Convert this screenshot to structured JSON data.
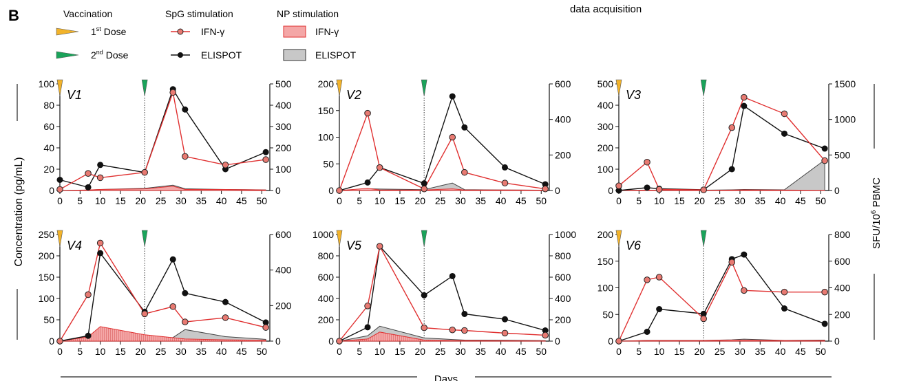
{
  "panel_letter": "B",
  "top_text": "data acquisition",
  "legend": {
    "vaccination": {
      "title": "Vaccination",
      "dose1": "1",
      "dose1_sup": "st",
      "dose1_rest": " Dose",
      "dose2": "2",
      "dose2_sup": "nd",
      "dose2_rest": " Dose"
    },
    "spg": {
      "title": "SpG stimulation",
      "ifn": "IFN-γ",
      "elispot": "ELISPOT"
    },
    "np": {
      "title": "NP stimulation",
      "ifn": "IFN-γ",
      "elispot": "ELISPOT"
    }
  },
  "axis_labels": {
    "left": "Concentration (pg/mL)",
    "right_main": "SFU/10",
    "right_sup": "6",
    "right_tail": " PBMC",
    "x": "Days"
  },
  "colors": {
    "dose1": "#f2b32a",
    "dose2": "#1aa35a",
    "ifn_line": "#e03030",
    "ifn_marker": "#e87a72",
    "elispot_line": "#111111",
    "np_ifn_fill": "#f4a7a7",
    "np_elispot_fill": "#c8c8c8"
  },
  "chart_data": [
    {
      "type": "line",
      "title": "V1",
      "x_ticks": [
        0,
        5,
        10,
        15,
        20,
        25,
        30,
        35,
        40,
        45,
        50
      ],
      "xlim": [
        0,
        52
      ],
      "ylim_left": [
        0,
        100
      ],
      "yticks_left": [
        0,
        20,
        40,
        60,
        80,
        100
      ],
      "ylim_right": [
        0,
        500
      ],
      "yticks_right": [
        0,
        100,
        200,
        300,
        400,
        500
      ],
      "dose_days": [
        0,
        21
      ],
      "series": [
        {
          "role": "spg_ifn",
          "axis": "left",
          "x": [
            0,
            7,
            10,
            21,
            28,
            31,
            41,
            51
          ],
          "y": [
            1,
            16,
            12,
            17,
            92,
            32,
            24,
            29
          ]
        },
        {
          "role": "spg_elispot",
          "axis": "right",
          "x": [
            0,
            7,
            10,
            21,
            28,
            31,
            41,
            51
          ],
          "y": [
            50,
            15,
            120,
            85,
            475,
            380,
            100,
            180
          ]
        },
        {
          "role": "np_ifn",
          "axis": "left",
          "x": [
            0,
            7,
            10,
            21,
            28,
            31,
            41,
            51
          ],
          "y": [
            0,
            0.5,
            1,
            1.5,
            4,
            1,
            1,
            0.5
          ]
        },
        {
          "role": "np_elispot",
          "axis": "right",
          "x": [
            0,
            7,
            10,
            21,
            28,
            31,
            41,
            51
          ],
          "y": [
            0,
            2,
            5,
            10,
            25,
            8,
            5,
            3
          ]
        }
      ]
    },
    {
      "type": "line",
      "title": "V2",
      "x_ticks": [
        0,
        5,
        10,
        15,
        20,
        25,
        30,
        35,
        40,
        45,
        50
      ],
      "xlim": [
        0,
        52
      ],
      "ylim_left": [
        0,
        200
      ],
      "yticks_left": [
        0,
        50,
        100,
        150,
        200
      ],
      "ylim_right": [
        0,
        600
      ],
      "yticks_right": [
        0,
        200,
        400,
        600
      ],
      "dose_days": [
        0,
        21
      ],
      "series": [
        {
          "role": "spg_ifn",
          "axis": "left",
          "x": [
            0,
            7,
            10,
            21,
            28,
            31,
            41,
            51
          ],
          "y": [
            0,
            145,
            43,
            3,
            100,
            34,
            14,
            3
          ]
        },
        {
          "role": "spg_elispot",
          "axis": "right",
          "x": [
            0,
            7,
            10,
            21,
            28,
            31,
            41,
            51
          ],
          "y": [
            0,
            45,
            130,
            40,
            530,
            355,
            130,
            35
          ]
        },
        {
          "role": "np_ifn",
          "axis": "left",
          "x": [
            0,
            7,
            10,
            21,
            28,
            31,
            41,
            51
          ],
          "y": [
            0,
            4,
            1,
            1,
            3,
            1,
            1,
            0.5
          ]
        },
        {
          "role": "np_elispot",
          "axis": "right",
          "x": [
            0,
            7,
            10,
            21,
            28,
            31,
            41,
            51
          ],
          "y": [
            0,
            10,
            8,
            5,
            42,
            5,
            3,
            2
          ]
        }
      ]
    },
    {
      "type": "line",
      "title": "V3",
      "x_ticks": [
        0,
        5,
        10,
        15,
        20,
        25,
        30,
        35,
        40,
        45,
        50
      ],
      "xlim": [
        0,
        52
      ],
      "ylim_left": [
        0,
        500
      ],
      "yticks_left": [
        0,
        100,
        200,
        300,
        400,
        500
      ],
      "ylim_right": [
        0,
        1500
      ],
      "yticks_right": [
        0,
        500,
        1000,
        1500
      ],
      "dose_days": [
        0,
        21
      ],
      "series": [
        {
          "role": "spg_ifn",
          "axis": "left",
          "x": [
            0,
            7,
            10,
            21,
            28,
            31,
            41,
            51
          ],
          "y": [
            22,
            133,
            5,
            3,
            295,
            437,
            360,
            140
          ]
        },
        {
          "role": "spg_elispot",
          "axis": "right",
          "x": [
            0,
            7,
            10,
            21,
            28,
            31,
            41,
            51
          ],
          "y": [
            0,
            40,
            25,
            10,
            300,
            1190,
            800,
            590
          ]
        },
        {
          "role": "np_ifn",
          "axis": "left",
          "x": [
            0,
            7,
            10,
            21,
            28,
            31,
            41,
            51
          ],
          "y": [
            0,
            2,
            1,
            1,
            2,
            3,
            2,
            1
          ]
        },
        {
          "role": "np_elispot",
          "axis": "right",
          "x": [
            0,
            7,
            10,
            21,
            28,
            31,
            41,
            51
          ],
          "y": [
            0,
            5,
            5,
            5,
            10,
            15,
            10,
            430
          ]
        }
      ]
    },
    {
      "type": "line",
      "title": "V4",
      "x_ticks": [
        0,
        5,
        10,
        15,
        20,
        25,
        30,
        35,
        40,
        45,
        50
      ],
      "xlim": [
        0,
        52
      ],
      "ylim_left": [
        0,
        250
      ],
      "yticks_left": [
        0,
        50,
        100,
        150,
        200,
        250
      ],
      "ylim_right": [
        0,
        600
      ],
      "yticks_right": [
        0,
        200,
        400,
        600
      ],
      "dose_days": [
        0,
        21
      ],
      "series": [
        {
          "role": "spg_ifn",
          "axis": "left",
          "x": [
            0,
            7,
            10,
            21,
            28,
            31,
            41,
            51
          ],
          "y": [
            0,
            109,
            230,
            64,
            81,
            45,
            55,
            32
          ]
        },
        {
          "role": "spg_elispot",
          "axis": "right",
          "x": [
            0,
            7,
            10,
            21,
            28,
            31,
            41,
            51
          ],
          "y": [
            0,
            30,
            495,
            165,
            460,
            270,
            220,
            105
          ]
        },
        {
          "role": "np_ifn",
          "axis": "left",
          "x": [
            0,
            7,
            10,
            21,
            28,
            31,
            41,
            51
          ],
          "y": [
            0,
            10,
            34,
            15,
            8,
            5,
            3,
            2
          ]
        },
        {
          "role": "np_elispot",
          "axis": "right",
          "x": [
            0,
            7,
            10,
            21,
            28,
            31,
            41,
            51
          ],
          "y": [
            0,
            10,
            30,
            20,
            20,
            65,
            25,
            10
          ]
        }
      ]
    },
    {
      "type": "line",
      "title": "V5",
      "x_ticks": [
        0,
        5,
        10,
        15,
        20,
        25,
        30,
        35,
        40,
        45,
        50
      ],
      "xlim": [
        0,
        52
      ],
      "ylim_left": [
        0,
        1000
      ],
      "yticks_left": [
        0,
        200,
        400,
        600,
        800,
        1000
      ],
      "ylim_right": [
        0,
        1000
      ],
      "yticks_right": [
        0,
        200,
        400,
        600,
        800,
        1000
      ],
      "dose_days": [
        0,
        21
      ],
      "series": [
        {
          "role": "spg_ifn",
          "axis": "left",
          "x": [
            0,
            7,
            10,
            21,
            28,
            31,
            41,
            51
          ],
          "y": [
            0,
            330,
            890,
            125,
            105,
            100,
            75,
            55
          ]
        },
        {
          "role": "spg_elispot",
          "axis": "right",
          "x": [
            0,
            7,
            10,
            21,
            28,
            31,
            41,
            51
          ],
          "y": [
            0,
            130,
            890,
            430,
            610,
            255,
            205,
            100
          ]
        },
        {
          "role": "np_ifn",
          "axis": "left",
          "x": [
            0,
            7,
            10,
            21,
            28,
            31,
            41,
            51
          ],
          "y": [
            0,
            20,
            85,
            10,
            5,
            5,
            3,
            2
          ]
        },
        {
          "role": "np_elispot",
          "axis": "right",
          "x": [
            0,
            7,
            10,
            21,
            28,
            31,
            41,
            51
          ],
          "y": [
            0,
            50,
            140,
            30,
            15,
            10,
            8,
            5
          ]
        }
      ]
    },
    {
      "type": "line",
      "title": "V6",
      "x_ticks": [
        0,
        5,
        10,
        15,
        20,
        25,
        30,
        35,
        40,
        45,
        50
      ],
      "xlim": [
        0,
        52
      ],
      "ylim_left": [
        0,
        200
      ],
      "yticks_left": [
        0,
        50,
        100,
        150,
        200
      ],
      "ylim_right": [
        0,
        800
      ],
      "yticks_right": [
        0,
        200,
        400,
        600,
        800
      ],
      "dose_days": [
        0,
        21
      ],
      "series": [
        {
          "role": "spg_ifn",
          "axis": "left",
          "x": [
            0,
            7,
            10,
            21,
            28,
            31,
            41,
            51
          ],
          "y": [
            0,
            115,
            120,
            42,
            148,
            95,
            92,
            92
          ]
        },
        {
          "role": "spg_elispot",
          "axis": "right",
          "x": [
            0,
            7,
            10,
            21,
            28,
            31,
            41,
            51
          ],
          "y": [
            0,
            70,
            240,
            205,
            615,
            650,
            245,
            130
          ]
        },
        {
          "role": "np_ifn",
          "axis": "left",
          "x": [
            0,
            7,
            10,
            21,
            28,
            31,
            41,
            51
          ],
          "y": [
            0,
            1,
            1,
            1,
            2,
            2,
            1,
            1
          ]
        },
        {
          "role": "np_elispot",
          "axis": "right",
          "x": [
            0,
            7,
            10,
            21,
            28,
            31,
            41,
            51
          ],
          "y": [
            0,
            5,
            5,
            5,
            10,
            15,
            5,
            8
          ]
        }
      ]
    }
  ]
}
